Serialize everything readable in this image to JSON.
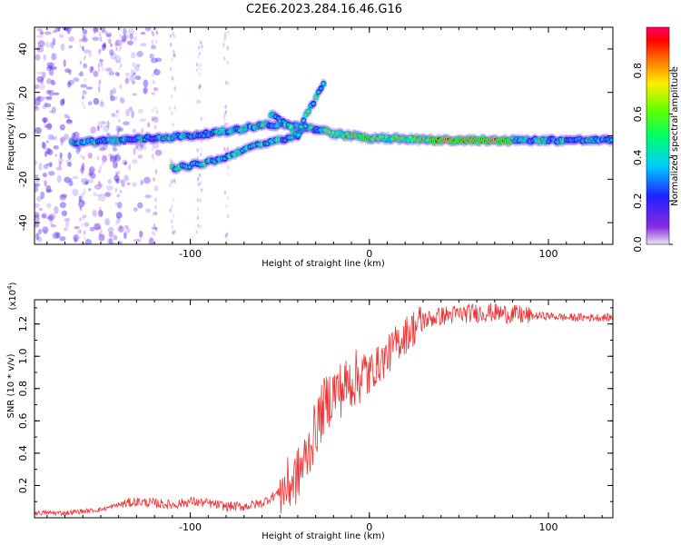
{
  "title": "C2E6.2023.284.16.46.G16",
  "chart_data": [
    {
      "type": "heatmap",
      "panel": "top",
      "title": "C2E6.2023.284.16.46.G16",
      "xlabel": "Height of straight line (km)",
      "ylabel": "Frequency (Hz)",
      "xlim": [
        -187,
        136
      ],
      "ylim": [
        -50,
        50
      ],
      "xticks": [
        -100,
        0,
        100
      ],
      "yticks": [
        -40,
        -20,
        0,
        20,
        40
      ],
      "series": [
        {
          "points": [
            [
              -166,
              -3
            ],
            [
              -140,
              -2
            ],
            [
              -120,
              -1
            ],
            [
              -100,
              0
            ],
            [
              -80,
              2
            ],
            [
              -60,
              5
            ],
            [
              -45,
              5
            ],
            [
              -30,
              3
            ],
            [
              -20,
              1
            ],
            [
              0,
              -1
            ],
            [
              20,
              -1.5
            ],
            [
              40,
              -2
            ],
            [
              60,
              -2
            ],
            [
              80,
              -2
            ],
            [
              100,
              -2
            ],
            [
              120,
              -2
            ],
            [
              136,
              -2
            ]
          ]
        },
        {
          "points": [
            [
              -110,
              -15
            ],
            [
              -95,
              -13
            ],
            [
              -80,
              -10
            ],
            [
              -70,
              -6
            ],
            [
              -60,
              -4
            ],
            [
              -50,
              -2
            ],
            [
              -40,
              0
            ],
            [
              -35,
              5
            ]
          ]
        },
        {
          "points": [
            [
              -55,
              10
            ],
            [
              -45,
              5
            ],
            [
              -40,
              0
            ],
            [
              -35,
              10
            ],
            [
              -28,
              20
            ],
            [
              -25,
              25
            ]
          ]
        }
      ],
      "colorbar": {
        "label": "Normalized spectral amplitude",
        "range": [
          0,
          1
        ],
        "ticks": [
          "0.0",
          "0.2",
          "0.4",
          "0.6",
          "0.8"
        ],
        "tick_values": [
          0.0,
          0.2,
          0.4,
          0.6,
          0.8
        ]
      }
    },
    {
      "type": "line",
      "panel": "bottom",
      "xlabel": "Height of straight line (km)",
      "ylabel": "SNR (10 * v/v)",
      "scale_note_base": "(x10",
      "scale_note_exp": "4",
      "scale_note_end": ")",
      "xlim": [
        -187,
        136
      ],
      "ylim": [
        0,
        1.35
      ],
      "xticks": [
        -100,
        0,
        100
      ],
      "yticks": [
        0.2,
        0.4,
        0.6,
        0.8,
        1.0,
        1.2
      ],
      "ytick_labels": [
        "0.2",
        "0.4",
        "0.6",
        "0.8",
        "1.0",
        "1.2"
      ],
      "color": "#ee3333",
      "series": [
        {
          "x": [
            -187,
            -170,
            -150,
            -140,
            -130,
            -120,
            -110,
            -100,
            -90,
            -80,
            -70,
            -60,
            -50,
            -45,
            -40,
            -35,
            -30,
            -25,
            -20,
            -15,
            -10,
            -5,
            0,
            5,
            10,
            15,
            20,
            25,
            30,
            40,
            50,
            60,
            70,
            80,
            90,
            100,
            110,
            120,
            130,
            136
          ],
          "y": [
            0.03,
            0.03,
            0.05,
            0.08,
            0.1,
            0.09,
            0.08,
            0.1,
            0.09,
            0.07,
            0.07,
            0.09,
            0.16,
            0.2,
            0.26,
            0.38,
            0.55,
            0.7,
            0.78,
            0.8,
            0.85,
            0.88,
            0.9,
            0.95,
            1.0,
            1.08,
            1.13,
            1.18,
            1.22,
            1.25,
            1.26,
            1.27,
            1.27,
            1.26,
            1.25,
            1.25,
            1.24,
            1.24,
            1.24,
            1.24
          ]
        }
      ]
    }
  ]
}
